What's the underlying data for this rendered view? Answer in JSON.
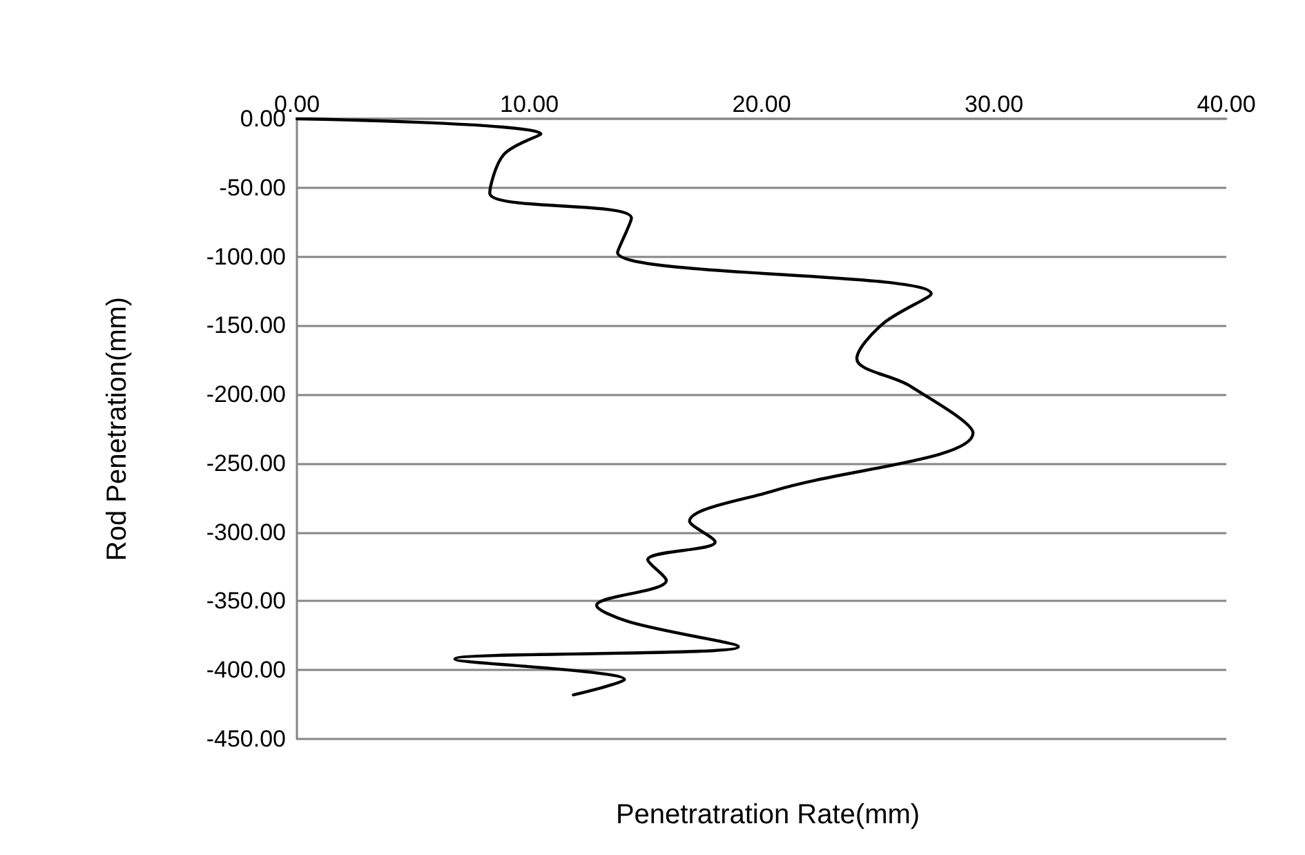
{
  "chart_data": {
    "type": "line",
    "xlabel": "Penetratration Rate(mm)",
    "ylabel": "Rod Penetration(mm)",
    "series": [
      {
        "color": "#000000",
        "x": [
          0,
          10.5,
          8.9,
          8.3,
          14.4,
          13.8,
          27.3,
          25.2,
          24.1,
          26.4,
          29.1,
          20.5,
          16.9,
          18.0,
          15.1,
          15.9,
          12.9,
          14.3,
          19.0,
          6.8,
          14.1,
          11.9
        ],
        "values": [
          0,
          -11,
          -26,
          -54,
          -72,
          -97,
          -127,
          -149,
          -174,
          -194,
          -228,
          -270,
          -292,
          -307,
          -320,
          -335,
          -353,
          -365,
          -383,
          -392,
          -407,
          -418
        ]
      }
    ],
    "xlim": [
      0,
      40
    ],
    "xticks": [
      {
        "value": 0,
        "label": "0.00"
      },
      {
        "value": 10,
        "label": "10.00"
      },
      {
        "value": 20,
        "label": "20.00"
      },
      {
        "value": 30,
        "label": "30.00"
      },
      {
        "value": 40,
        "label": "40.00"
      }
    ],
    "ylim": [
      -450,
      0
    ],
    "yticks": [
      {
        "value": 0,
        "label": "0.00"
      },
      {
        "value": -50,
        "label": "-50.00"
      },
      {
        "value": -100,
        "label": "-100.00"
      },
      {
        "value": -150,
        "label": "-150.00"
      },
      {
        "value": -200,
        "label": "-200.00"
      },
      {
        "value": -250,
        "label": "-250.00"
      },
      {
        "value": -300,
        "label": "-300.00"
      },
      {
        "value": -350,
        "label": "-350.00"
      },
      {
        "value": -400,
        "label": "-400.00"
      },
      {
        "value": -450,
        "label": "-450.00"
      }
    ],
    "grid": "y",
    "marker": "none",
    "line_style": "solid"
  }
}
